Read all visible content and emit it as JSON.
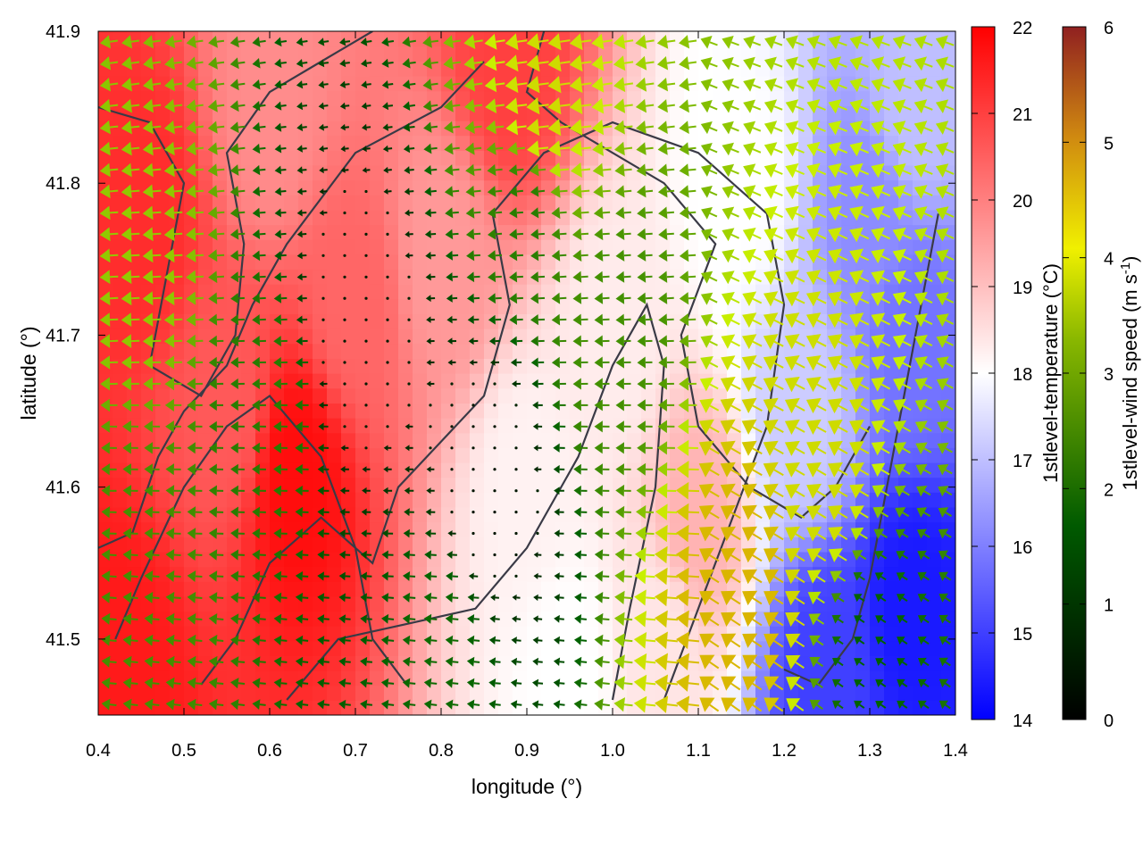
{
  "chart_data": {
    "type": "heatmap",
    "x": {
      "label": "longitude (°)",
      "range": [
        0.4,
        1.4
      ],
      "ticks": [
        "0.4",
        "0.5",
        "0.6",
        "0.7",
        "0.8",
        "0.9",
        "1.0",
        "1.1",
        "1.2",
        "1.3",
        "1.4"
      ]
    },
    "y": {
      "label": "latitude (°)",
      "range": [
        41.45,
        41.9
      ],
      "ticks": [
        "41.5",
        "41.6",
        "41.7",
        "41.8",
        "41.9"
      ]
    },
    "temperature": {
      "label": "1stlevel-temperature (°C)",
      "range": [
        14,
        22
      ],
      "ticks": [
        "14",
        "15",
        "16",
        "17",
        "18",
        "19",
        "20",
        "21",
        "22"
      ],
      "colormap": [
        "#0000ff",
        "#ffffff",
        "#ff0000"
      ],
      "field_samples": [
        {
          "lon": 0.42,
          "lat": 41.48,
          "t": 21.6
        },
        {
          "lon": 0.45,
          "lat": 41.78,
          "t": 21.3
        },
        {
          "lon": 0.63,
          "lat": 41.61,
          "t": 21.8
        },
        {
          "lon": 0.55,
          "lat": 41.65,
          "t": 20.6
        },
        {
          "lon": 0.7,
          "lat": 41.72,
          "t": 20.4
        },
        {
          "lon": 0.6,
          "lat": 41.85,
          "t": 19.8
        },
        {
          "lon": 0.88,
          "lat": 41.88,
          "t": 21.0
        },
        {
          "lon": 0.8,
          "lat": 41.75,
          "t": 19.6
        },
        {
          "lon": 0.9,
          "lat": 41.6,
          "t": 18.2
        },
        {
          "lon": 1.0,
          "lat": 41.7,
          "t": 18.3
        },
        {
          "lon": 1.1,
          "lat": 41.58,
          "t": 19.2
        },
        {
          "lon": 1.05,
          "lat": 41.5,
          "t": 18.4
        },
        {
          "lon": 0.95,
          "lat": 41.48,
          "t": 18.0
        },
        {
          "lon": 1.15,
          "lat": 41.8,
          "t": 18.0
        },
        {
          "lon": 1.35,
          "lat": 41.85,
          "t": 17.0
        },
        {
          "lon": 1.35,
          "lat": 41.7,
          "t": 15.8
        },
        {
          "lon": 1.35,
          "lat": 41.52,
          "t": 14.4
        },
        {
          "lon": 1.25,
          "lat": 41.48,
          "t": 15.0
        },
        {
          "lon": 1.22,
          "lat": 41.65,
          "t": 17.2
        },
        {
          "lon": 1.3,
          "lat": 41.78,
          "t": 16.2
        }
      ]
    },
    "wind_speed": {
      "label_prefix": "1stlevel-wind speed (m s",
      "label_exp": "-1",
      "label_suffix": ")",
      "range": [
        0,
        6
      ],
      "ticks": [
        "0",
        "1",
        "2",
        "3",
        "4",
        "5",
        "6"
      ],
      "colormap": [
        "#000000",
        "#006000",
        "#c8f000",
        "#e0a000",
        "#902020"
      ],
      "direction": "mostly from the east (vectors point west)",
      "field_samples": [
        {
          "lon": 0.45,
          "lat": 41.75,
          "s": 2.6
        },
        {
          "lon": 0.45,
          "lat": 41.55,
          "s": 2.0
        },
        {
          "lon": 0.6,
          "lat": 41.65,
          "s": 1.8
        },
        {
          "lon": 0.7,
          "lat": 41.7,
          "s": 0.4
        },
        {
          "lon": 0.9,
          "lat": 41.78,
          "s": 1.8
        },
        {
          "lon": 0.92,
          "lat": 41.85,
          "s": 3.4
        },
        {
          "lon": 1.0,
          "lat": 41.7,
          "s": 2.0
        },
        {
          "lon": 1.15,
          "lat": 41.53,
          "s": 4.1
        },
        {
          "lon": 1.25,
          "lat": 41.6,
          "s": 3.4
        },
        {
          "lon": 1.3,
          "lat": 41.5,
          "s": 1.5
        },
        {
          "lon": 0.8,
          "lat": 41.5,
          "s": 1.6
        },
        {
          "lon": 0.85,
          "lat": 41.6,
          "s": 0.3
        }
      ]
    },
    "overlay": "dark grey contour lines (terrain)"
  }
}
